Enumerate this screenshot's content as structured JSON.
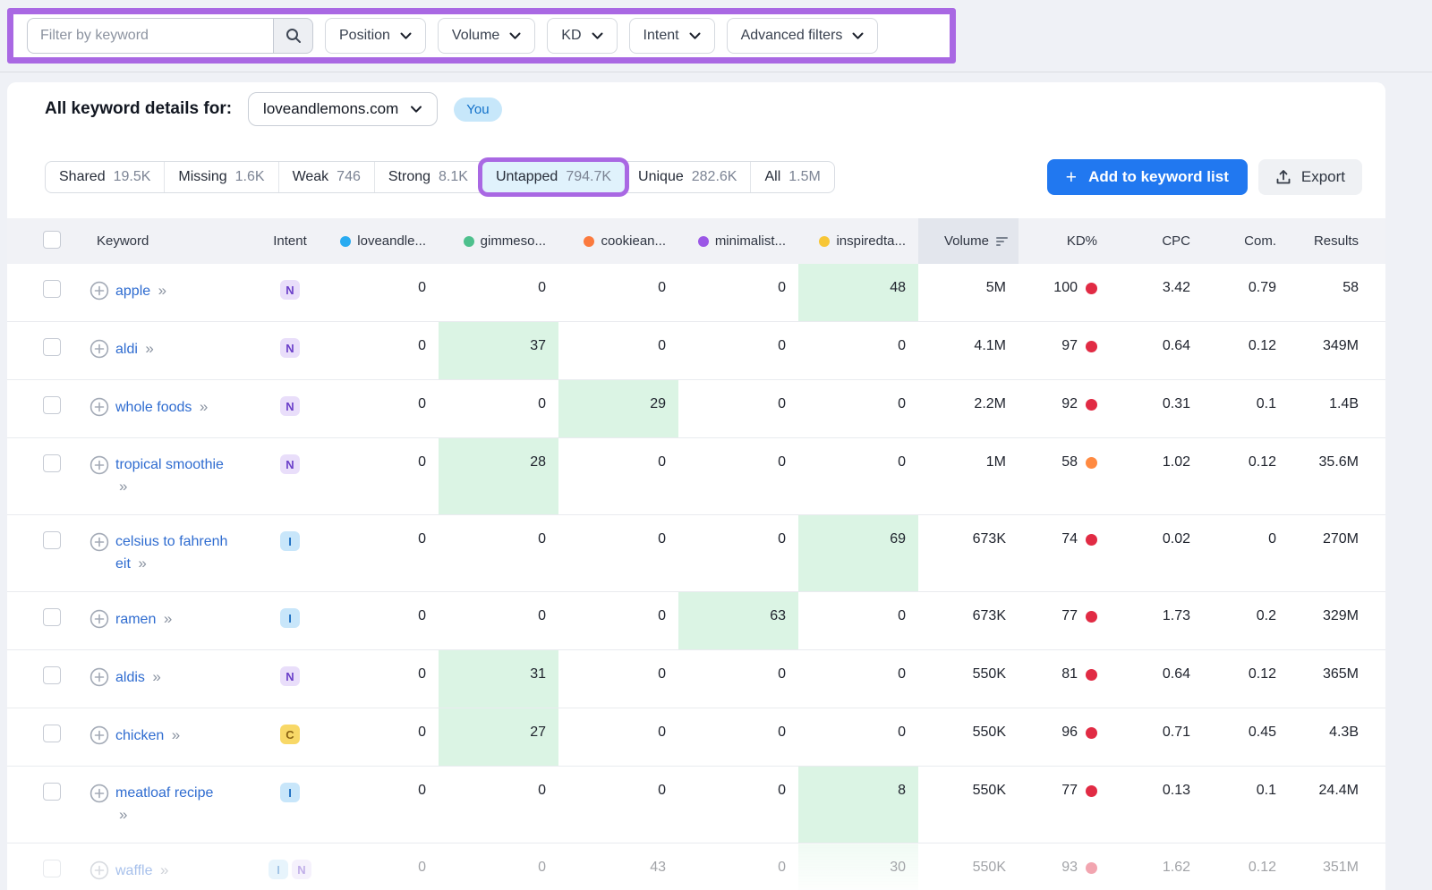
{
  "filter_bar": {
    "search_placeholder": "Filter by keyword",
    "dropdowns": [
      "Position",
      "Volume",
      "KD",
      "Intent",
      "Advanced filters"
    ],
    "highlight_color": "#A968E3"
  },
  "details_bar": {
    "label": "All keyword details for:",
    "domain_selector": "loveandlemons.com",
    "you_badge": "You"
  },
  "tabs": [
    {
      "label": "Shared",
      "count": "19.5K"
    },
    {
      "label": "Missing",
      "count": "1.6K"
    },
    {
      "label": "Weak",
      "count": "746"
    },
    {
      "label": "Strong",
      "count": "8.1K"
    },
    {
      "label": "Untapped",
      "count": "794.7K",
      "active": true
    },
    {
      "label": "Unique",
      "count": "282.6K"
    },
    {
      "label": "All",
      "count": "1.5M"
    }
  ],
  "actions": {
    "add_to_list": "Add to keyword list",
    "export": "Export"
  },
  "table": {
    "columns": {
      "keyword": "Keyword",
      "intent": "Intent",
      "volume": "Volume",
      "kd": "KD%",
      "cpc": "CPC",
      "com": "Com.",
      "results": "Results"
    },
    "competitors": [
      {
        "label": "loveandle...",
        "color": "#29ABF1"
      },
      {
        "label": "gimmeso...",
        "color": "#4EC08D"
      },
      {
        "label": "cookiean...",
        "color": "#FB7A3E"
      },
      {
        "label": "minimalist...",
        "color": "#9B57E6"
      },
      {
        "label": "inspiredta...",
        "color": "#F7C636"
      }
    ],
    "intent_types": {
      "N": {
        "bg": "#E9DEFA",
        "text": "#6B3FC9"
      },
      "I": {
        "bg": "#C8E6FA",
        "text": "#1D6FC2"
      },
      "C": {
        "bg": "#F8D867",
        "text": "#8B6414"
      }
    },
    "kd_colors": {
      "red": "#E12B44",
      "orange": "#FF8A41"
    },
    "green_highlight": "#DBF4E4",
    "rows": [
      {
        "keyword": "apple",
        "intent": [
          "N"
        ],
        "positions": [
          "0",
          "0",
          "0",
          "0",
          "48"
        ],
        "highlight_index": 4,
        "volume": "5M",
        "kd": "100",
        "kd_color": "red",
        "cpc": "3.42",
        "com": "0.79",
        "results": "58"
      },
      {
        "keyword": "aldi",
        "intent": [
          "N"
        ],
        "positions": [
          "0",
          "37",
          "0",
          "0",
          "0"
        ],
        "highlight_index": 1,
        "volume": "4.1M",
        "kd": "97",
        "kd_color": "red",
        "cpc": "0.64",
        "com": "0.12",
        "results": "349M"
      },
      {
        "keyword": "whole foods",
        "intent": [
          "N"
        ],
        "positions": [
          "0",
          "0",
          "29",
          "0",
          "0"
        ],
        "highlight_index": 2,
        "volume": "2.2M",
        "kd": "92",
        "kd_color": "red",
        "cpc": "0.31",
        "com": "0.1",
        "results": "1.4B"
      },
      {
        "keyword": "tropical smoothie",
        "intent": [
          "N"
        ],
        "positions": [
          "0",
          "28",
          "0",
          "0",
          "0"
        ],
        "highlight_index": 1,
        "volume": "1M",
        "kd": "58",
        "kd_color": "orange",
        "cpc": "1.02",
        "com": "0.12",
        "results": "35.6M"
      },
      {
        "keyword": "celsius to fahrenheit",
        "intent": [
          "I"
        ],
        "positions": [
          "0",
          "0",
          "0",
          "0",
          "69"
        ],
        "highlight_index": 4,
        "volume": "673K",
        "kd": "74",
        "kd_color": "red",
        "cpc": "0.02",
        "com": "0",
        "results": "270M"
      },
      {
        "keyword": "ramen",
        "intent": [
          "I"
        ],
        "positions": [
          "0",
          "0",
          "0",
          "63",
          "0"
        ],
        "highlight_index": 3,
        "volume": "673K",
        "kd": "77",
        "kd_color": "red",
        "cpc": "1.73",
        "com": "0.2",
        "results": "329M"
      },
      {
        "keyword": "aldis",
        "intent": [
          "N"
        ],
        "positions": [
          "0",
          "31",
          "0",
          "0",
          "0"
        ],
        "highlight_index": 1,
        "volume": "550K",
        "kd": "81",
        "kd_color": "red",
        "cpc": "0.64",
        "com": "0.12",
        "results": "365M"
      },
      {
        "keyword": "chicken",
        "intent": [
          "C"
        ],
        "positions": [
          "0",
          "27",
          "0",
          "0",
          "0"
        ],
        "highlight_index": 1,
        "volume": "550K",
        "kd": "96",
        "kd_color": "red",
        "cpc": "0.71",
        "com": "0.45",
        "results": "4.3B"
      },
      {
        "keyword": "meatloaf recipe",
        "intent": [
          "I"
        ],
        "positions": [
          "0",
          "0",
          "0",
          "0",
          "8"
        ],
        "highlight_index": 4,
        "volume": "550K",
        "kd": "77",
        "kd_color": "red",
        "cpc": "0.13",
        "com": "0.1",
        "results": "24.4M"
      },
      {
        "keyword": "waffle",
        "intent": [
          "I",
          "N"
        ],
        "positions": [
          "0",
          "0",
          "43",
          "0",
          "30"
        ],
        "highlight_index": 4,
        "volume": "550K",
        "kd": "93",
        "kd_color": "red",
        "cpc": "1.62",
        "com": "0.12",
        "results": "351M",
        "faded": true
      }
    ]
  }
}
